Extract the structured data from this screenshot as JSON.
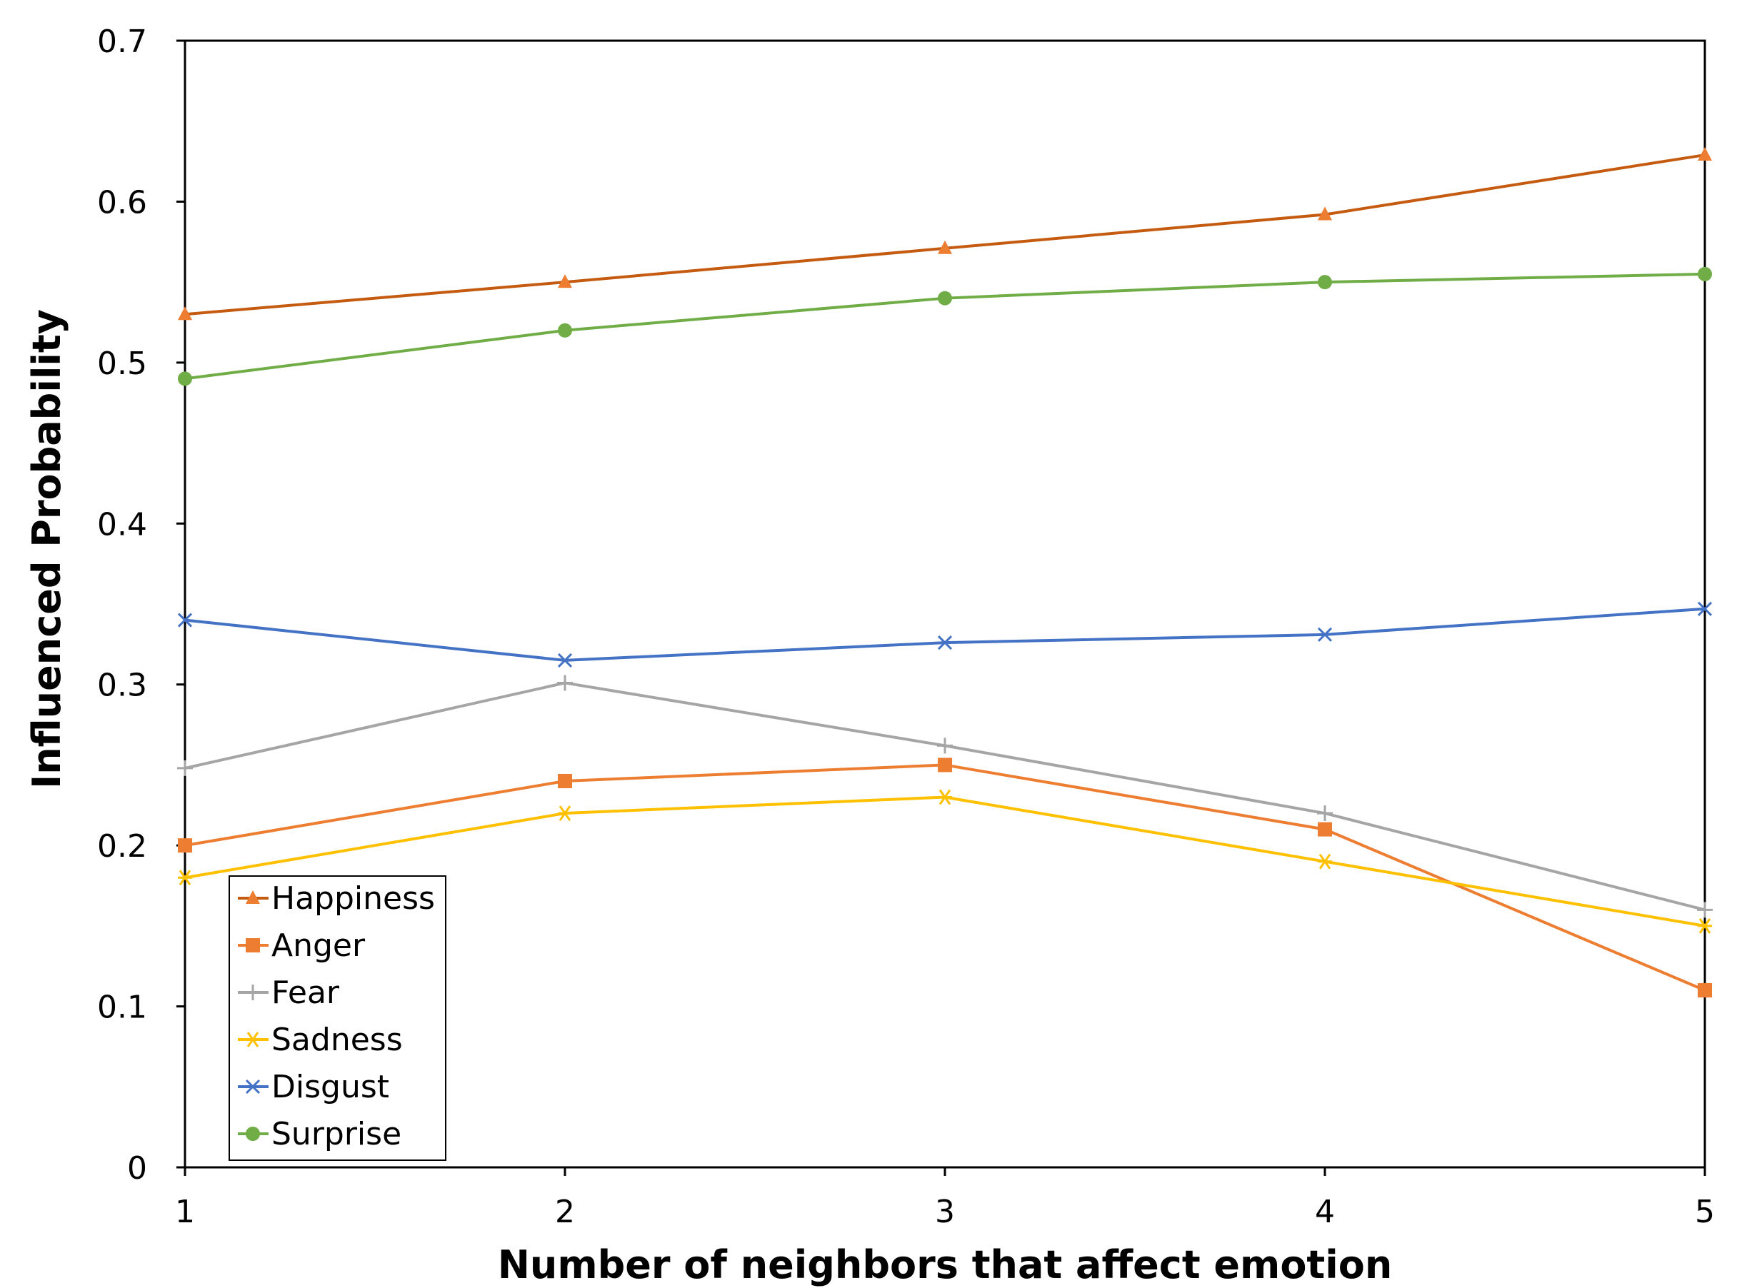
{
  "chart_data": {
    "type": "line",
    "title": "",
    "xlabel": "Number of neighbors that affect emotion",
    "ylabel": "Influenced Probability",
    "categories": [
      "1",
      "2",
      "3",
      "4",
      "5"
    ],
    "x": [
      1,
      2,
      3,
      4,
      5
    ],
    "xlim": [
      1,
      5
    ],
    "ylim": [
      0,
      0.7
    ],
    "yticks": [
      "0",
      "0.1",
      "0.2",
      "0.3",
      "0.4",
      "0.5",
      "0.6",
      "0.7"
    ],
    "ytick_values": [
      0,
      0.1,
      0.2,
      0.3,
      0.4,
      0.5,
      0.6,
      0.7
    ],
    "grid": false,
    "legend_position": "bottom-left",
    "series": [
      {
        "name": "Happiness",
        "marker": "triangle",
        "color": "#C55A11",
        "marker_color": "#ED7D31",
        "values": [
          0.53,
          0.55,
          0.571,
          0.592,
          0.629
        ]
      },
      {
        "name": "Anger",
        "marker": "square",
        "color": "#ED7D31",
        "marker_color": "#ED7D31",
        "values": [
          0.2,
          0.24,
          0.25,
          0.21,
          0.11
        ]
      },
      {
        "name": "Fear",
        "marker": "plus",
        "color": "#A5A5A5",
        "marker_color": "#A5A5A5",
        "values": [
          0.248,
          0.301,
          0.262,
          0.22,
          0.16
        ]
      },
      {
        "name": "Sadness",
        "marker": "asterisk",
        "color": "#FFC000",
        "marker_color": "#FFC000",
        "values": [
          0.18,
          0.22,
          0.23,
          0.19,
          0.15
        ]
      },
      {
        "name": "Disgust",
        "marker": "x",
        "color": "#4472C4",
        "marker_color": "#4472C4",
        "values": [
          0.34,
          0.315,
          0.326,
          0.331,
          0.347
        ]
      },
      {
        "name": "Surprise",
        "marker": "circle",
        "color": "#70AD47",
        "marker_color": "#70AD47",
        "values": [
          0.49,
          0.52,
          0.54,
          0.55,
          0.555
        ]
      }
    ]
  }
}
